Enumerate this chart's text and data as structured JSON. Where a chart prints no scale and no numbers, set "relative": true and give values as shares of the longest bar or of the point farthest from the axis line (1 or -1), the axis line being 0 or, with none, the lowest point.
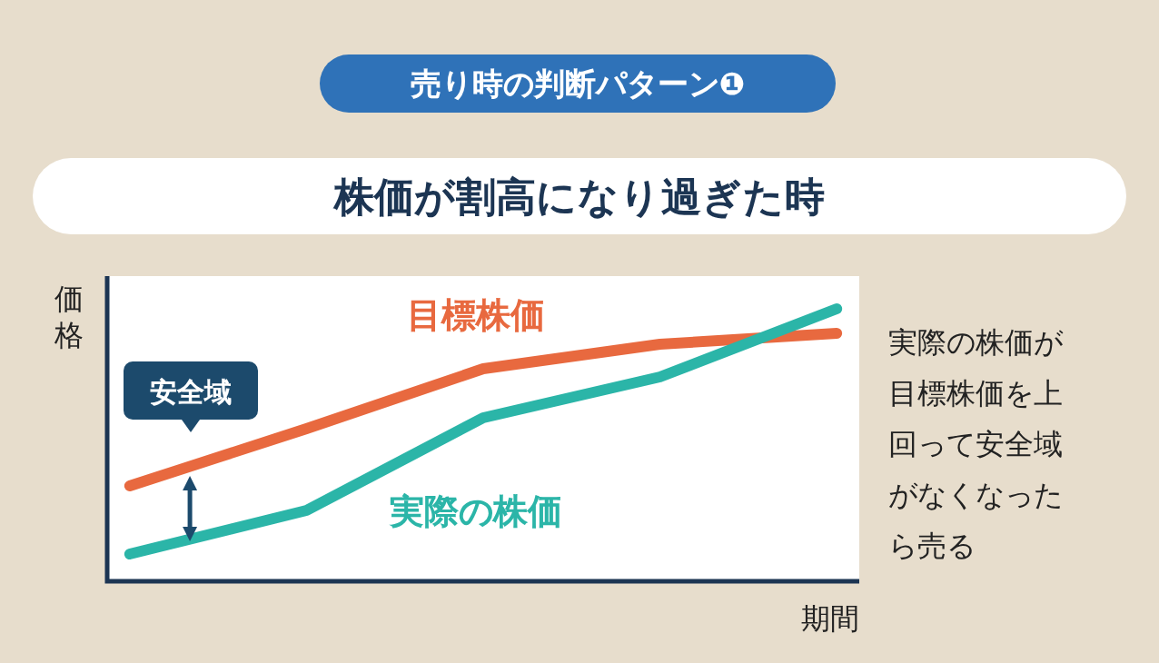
{
  "chart_data": {
    "type": "line",
    "relative": true,
    "title": "株価が割高になり過ぎた時",
    "subtitle": "売り時の判断パターン❶",
    "xlabel": "期間",
    "ylabel": "価格",
    "categories": [
      null,
      null,
      null,
      null,
      null
    ],
    "series": [
      {
        "name": "目標株価",
        "color": "#e8693f",
        "values": [
          0.35,
          0.56,
          0.78,
          0.87,
          0.91
        ]
      },
      {
        "name": "実際の株価",
        "color": "#2bb5a8",
        "values": [
          0.1,
          0.26,
          0.6,
          0.75,
          1
        ]
      }
    ],
    "annotations": [
      "安全域",
      "実際の株価が目標株価を上回って安全域がなくなったら売る"
    ]
  }
}
